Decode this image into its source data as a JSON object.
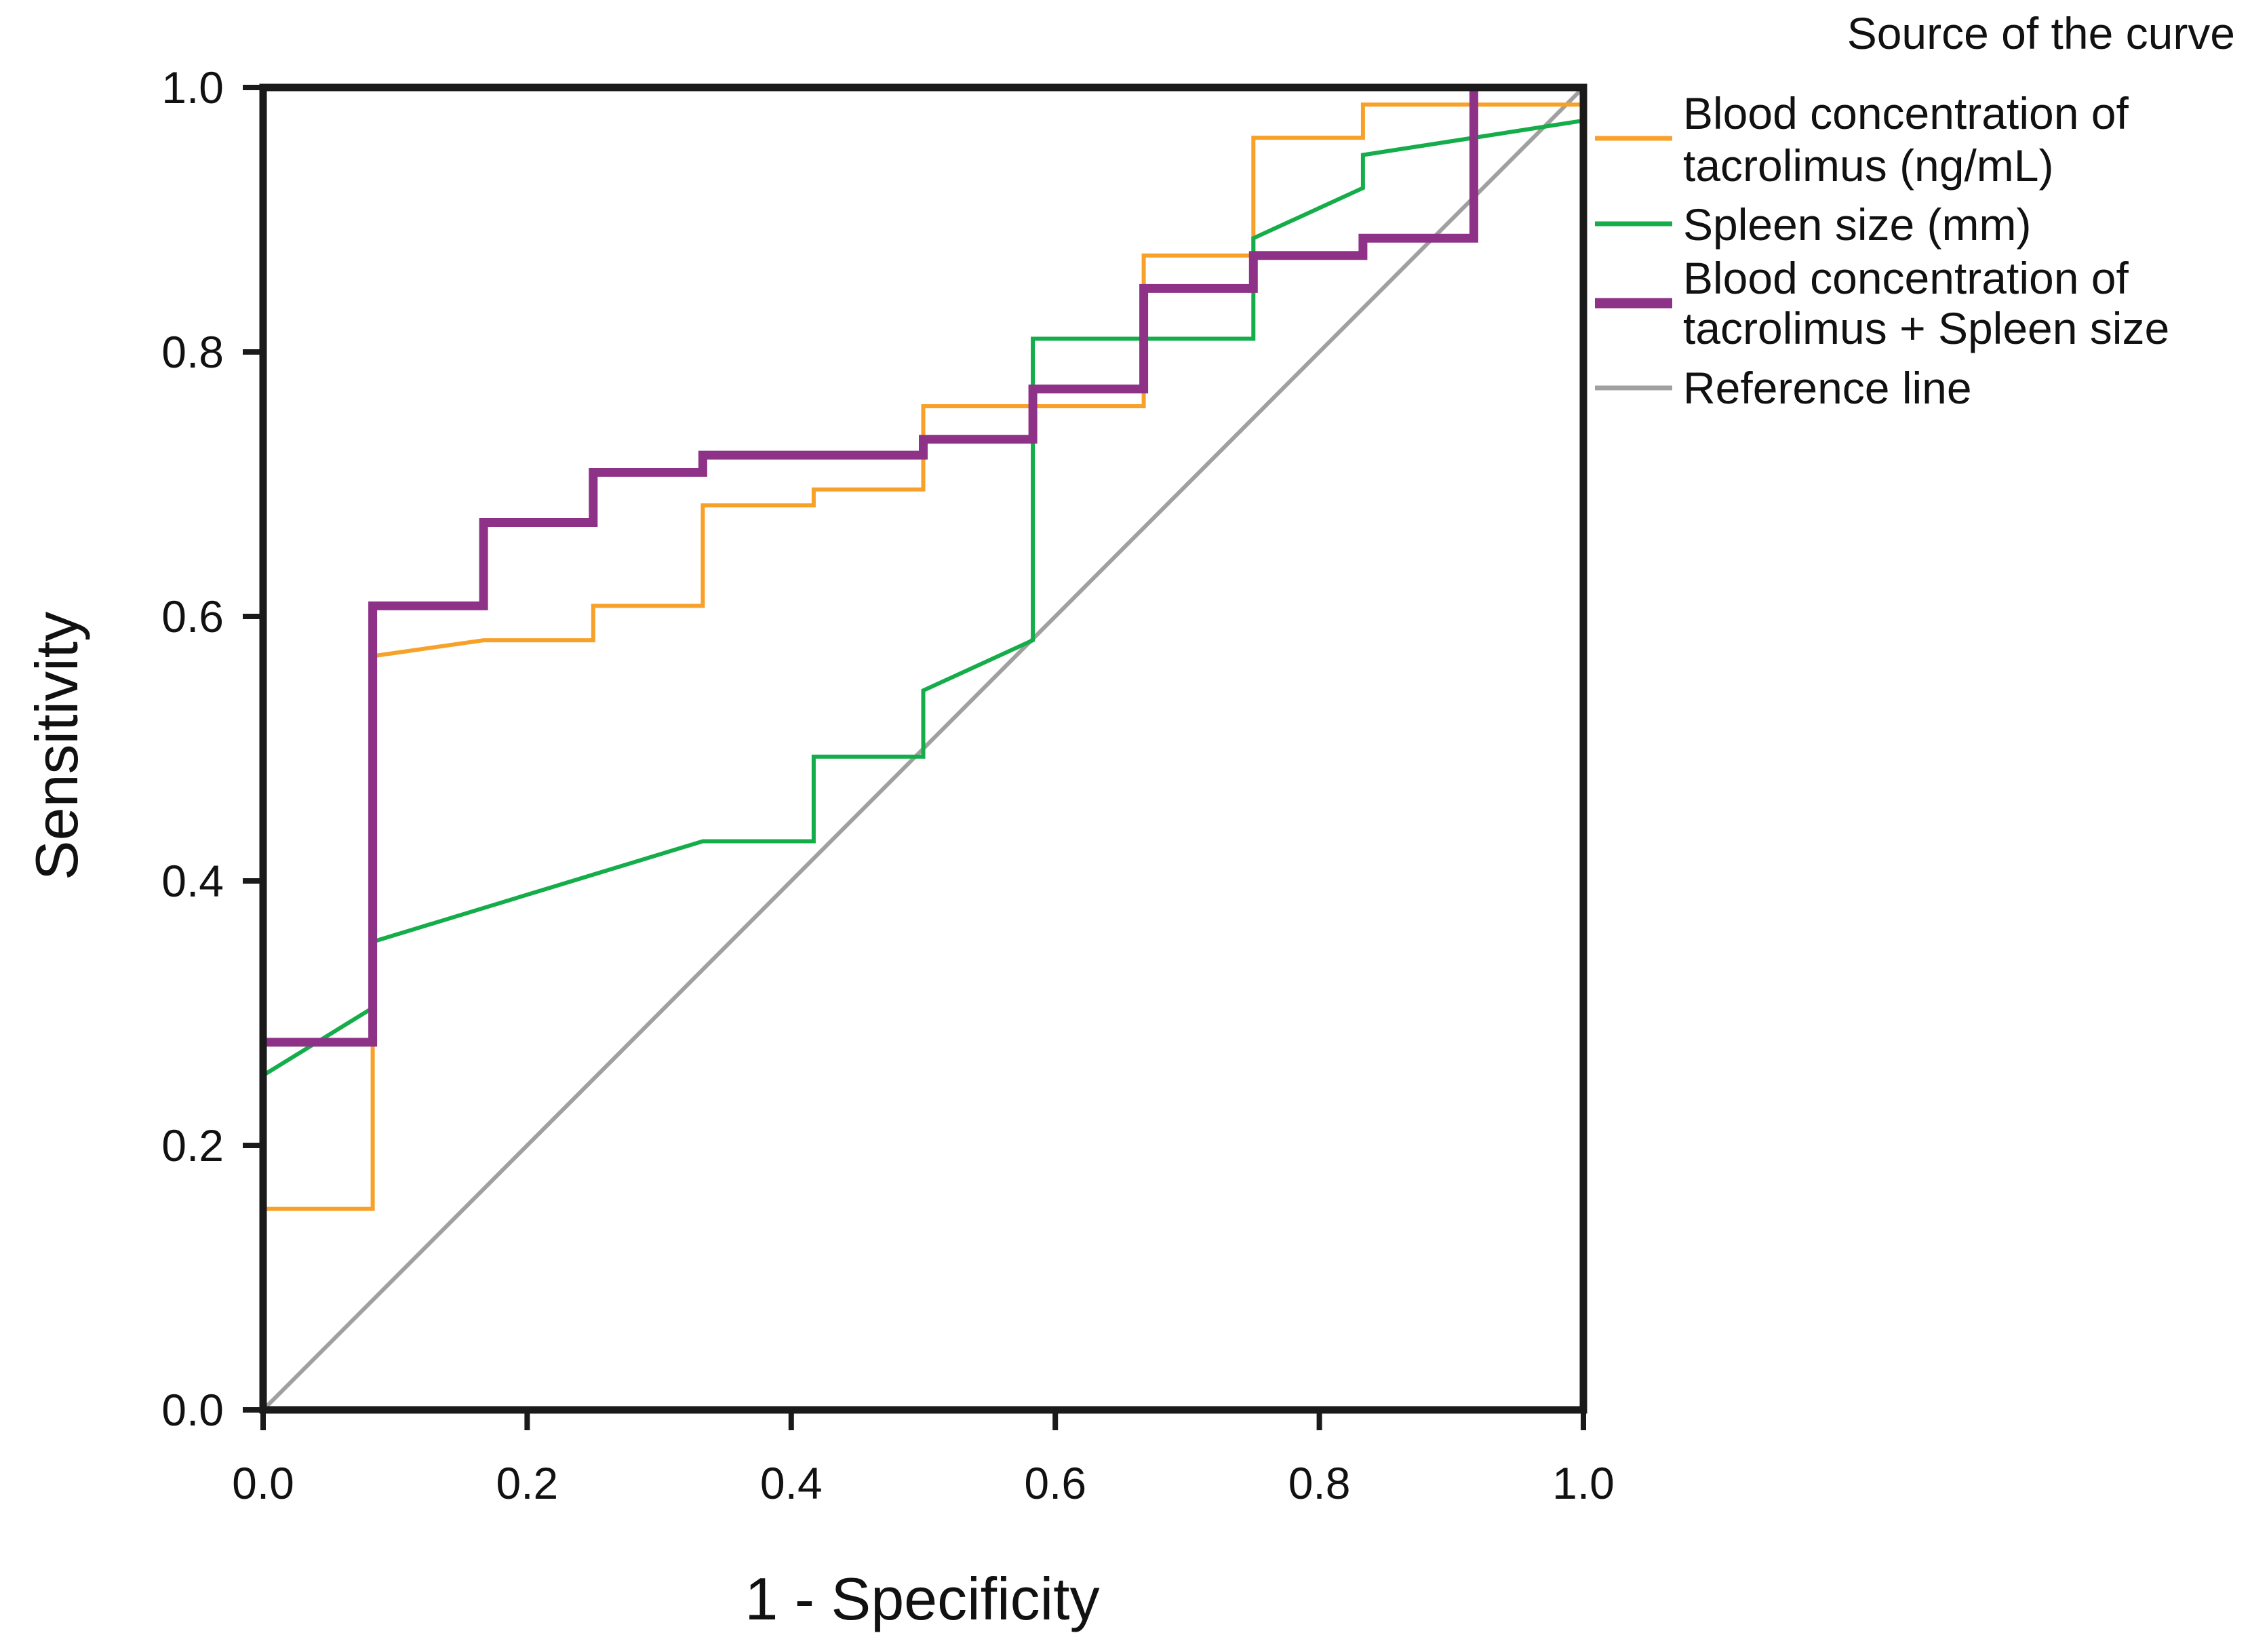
{
  "chart_data": {
    "type": "line",
    "xlabel": "1 - Specificity",
    "ylabel": "Sensitivity",
    "xlim": [
      0,
      1
    ],
    "ylim": [
      0,
      1
    ],
    "x_ticks": [
      "0.0",
      "0.2",
      "0.4",
      "0.6",
      "0.8",
      "1.0"
    ],
    "y_ticks": [
      "0.0",
      "0.2",
      "0.4",
      "0.6",
      "0.8",
      "1.0"
    ],
    "legend_title": "Source of the curve",
    "legend_position": "top-right outside plot",
    "series": [
      {
        "name": "Blood concentration of tacrolimus (ng/mL)",
        "legend_lines": [
          "Blood concentration of",
          "tacrolimus (ng/mL)"
        ],
        "color": "#F7A129",
        "emphasis": "normal",
        "points": [
          [
            0,
            0.152
          ],
          [
            0.083,
            0.152
          ],
          [
            0.083,
            0.57
          ],
          [
            0.167,
            0.582
          ],
          [
            0.25,
            0.582
          ],
          [
            0.25,
            0.608
          ],
          [
            0.333,
            0.608
          ],
          [
            0.333,
            0.684
          ],
          [
            0.417,
            0.684
          ],
          [
            0.417,
            0.696
          ],
          [
            0.5,
            0.696
          ],
          [
            0.5,
            0.759
          ],
          [
            0.667,
            0.759
          ],
          [
            0.667,
            0.873
          ],
          [
            0.75,
            0.873
          ],
          [
            0.75,
            0.962
          ],
          [
            0.833,
            0.962
          ],
          [
            0.833,
            0.987
          ],
          [
            1.0,
            0.987
          ]
        ]
      },
      {
        "name": "Spleen size (mm)",
        "legend_lines": [
          "Spleen size (mm)"
        ],
        "color": "#14AD4A",
        "emphasis": "normal",
        "points": [
          [
            0,
            0.253
          ],
          [
            0.083,
            0.304
          ],
          [
            0.083,
            0.354
          ],
          [
            0.333,
            0.43
          ],
          [
            0.417,
            0.43
          ],
          [
            0.417,
            0.494
          ],
          [
            0.5,
            0.494
          ],
          [
            0.5,
            0.544
          ],
          [
            0.583,
            0.582
          ],
          [
            0.583,
            0.81
          ],
          [
            0.75,
            0.81
          ],
          [
            0.75,
            0.886
          ],
          [
            0.833,
            0.924
          ],
          [
            0.833,
            0.949
          ],
          [
            0.917,
            0.962
          ],
          [
            1.0,
            0.975
          ]
        ]
      },
      {
        "name": "Blood concentration of tacrolimus + Spleen size",
        "legend_lines": [
          "Blood concentration of",
          "tacrolimus + Spleen size"
        ],
        "color": "#8E3287",
        "emphasis": "thick",
        "points": [
          [
            0,
            0.278
          ],
          [
            0.083,
            0.278
          ],
          [
            0.083,
            0.608
          ],
          [
            0.167,
            0.608
          ],
          [
            0.167,
            0.671
          ],
          [
            0.25,
            0.671
          ],
          [
            0.25,
            0.709
          ],
          [
            0.333,
            0.709
          ],
          [
            0.333,
            0.722
          ],
          [
            0.5,
            0.722
          ],
          [
            0.5,
            0.734
          ],
          [
            0.583,
            0.734
          ],
          [
            0.583,
            0.772
          ],
          [
            0.667,
            0.772
          ],
          [
            0.667,
            0.848
          ],
          [
            0.75,
            0.848
          ],
          [
            0.75,
            0.873
          ],
          [
            0.833,
            0.873
          ],
          [
            0.833,
            0.886
          ],
          [
            0.917,
            0.886
          ],
          [
            0.917,
            1.0
          ]
        ]
      },
      {
        "name": "Reference line",
        "legend_lines": [
          "Reference line"
        ],
        "color": "#A0A0A0",
        "emphasis": "normal",
        "points": [
          [
            0,
            0
          ],
          [
            1,
            1
          ]
        ]
      }
    ]
  }
}
